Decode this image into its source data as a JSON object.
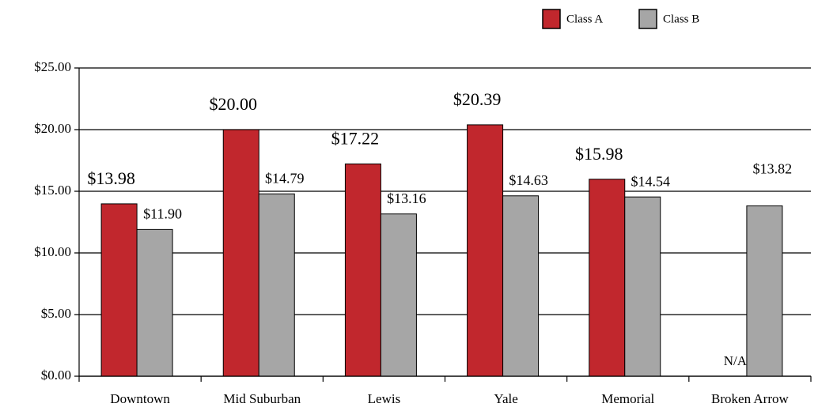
{
  "chart_data": {
    "type": "bar",
    "categories": [
      "Downtown",
      "Mid Suburban",
      "Lewis",
      "Yale",
      "Memorial",
      "Broken Arrow"
    ],
    "series": [
      {
        "name": "Class A",
        "color": "#c1272d",
        "values": [
          13.98,
          20.0,
          17.22,
          20.39,
          15.98,
          null
        ],
        "value_labels": [
          "$13.98",
          "$20.00",
          "$17.22",
          "$20.39",
          "$15.98",
          "N/A"
        ]
      },
      {
        "name": "Class B",
        "color": "#a6a6a6",
        "values": [
          11.9,
          14.79,
          13.16,
          14.63,
          14.54,
          13.82
        ],
        "value_labels": [
          "$11.90",
          "$14.79",
          "$13.16",
          "$14.63",
          "$14.54",
          "$13.82"
        ]
      }
    ],
    "ylim": [
      0,
      25
    ],
    "yticks": [
      {
        "value": 0,
        "label": "$0.00"
      },
      {
        "value": 5,
        "label": "$5.00"
      },
      {
        "value": 10,
        "label": "$10.00"
      },
      {
        "value": 15,
        "label": "$15.00"
      },
      {
        "value": 20,
        "label": "$20.00"
      },
      {
        "value": 25,
        "label": "$25.00"
      }
    ],
    "grid": true,
    "legend": "top-right"
  }
}
